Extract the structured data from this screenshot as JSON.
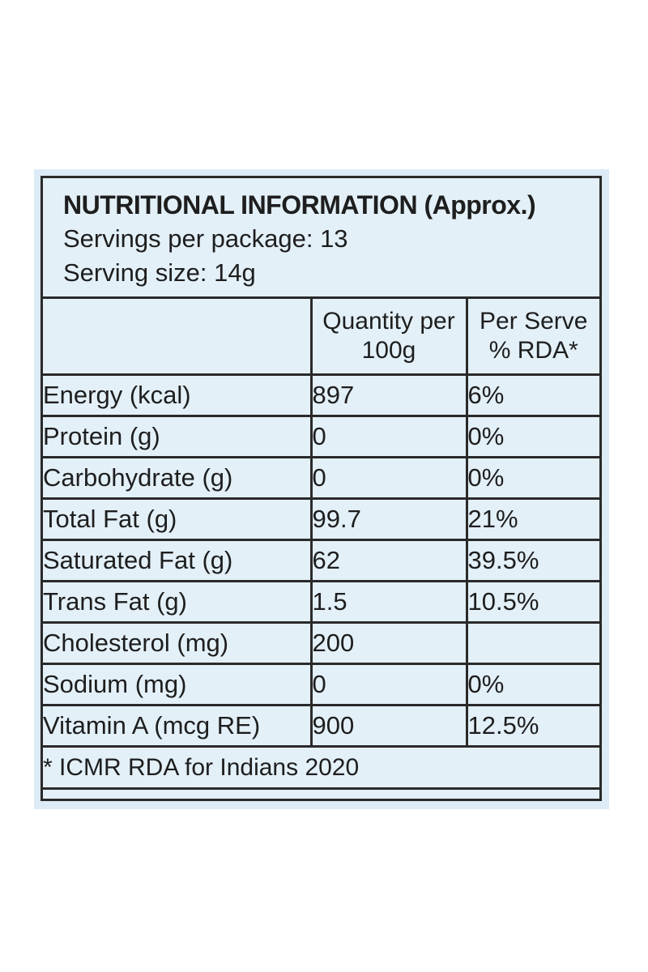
{
  "label": {
    "title": "NUTRITIONAL INFORMATION (Approx.)",
    "servings_per_package": "Servings per package: 13",
    "serving_size": "Serving size: 14g"
  },
  "table": {
    "columns": {
      "name": "",
      "quantity_line1": "Quantity per",
      "quantity_line2": "100g",
      "rda_line1": "Per Serve",
      "rda_line2": "% RDA*"
    },
    "rows": [
      {
        "name": "Energy (kcal)",
        "quantity": "897",
        "rda": "6%"
      },
      {
        "name": "Protein (g)",
        "quantity": "0",
        "rda": "0%"
      },
      {
        "name": "Carbohydrate (g)",
        "quantity": "0",
        "rda": "0%"
      },
      {
        "name": "Total Fat (g)",
        "quantity": "99.7",
        "rda": "21%"
      },
      {
        "name": "Saturated Fat (g)",
        "quantity": "62",
        "rda": "39.5%"
      },
      {
        "name": "Trans Fat (g)",
        "quantity": "1.5",
        "rda": "10.5%"
      },
      {
        "name": "Cholesterol (mg)",
        "quantity": "200",
        "rda": ""
      },
      {
        "name": "Sodium (mg)",
        "quantity": "0",
        "rda": "0%"
      },
      {
        "name": "Vitamin A (mcg RE)",
        "quantity": "900",
        "rda": "12.5%"
      }
    ],
    "footnote": "* ICMR RDA for Indians 2020"
  },
  "colors": {
    "panel_background": "#dcebf5",
    "frame_background": "#e3f0f8",
    "border": "#2a2a2a",
    "text": "#1e1e1e"
  }
}
